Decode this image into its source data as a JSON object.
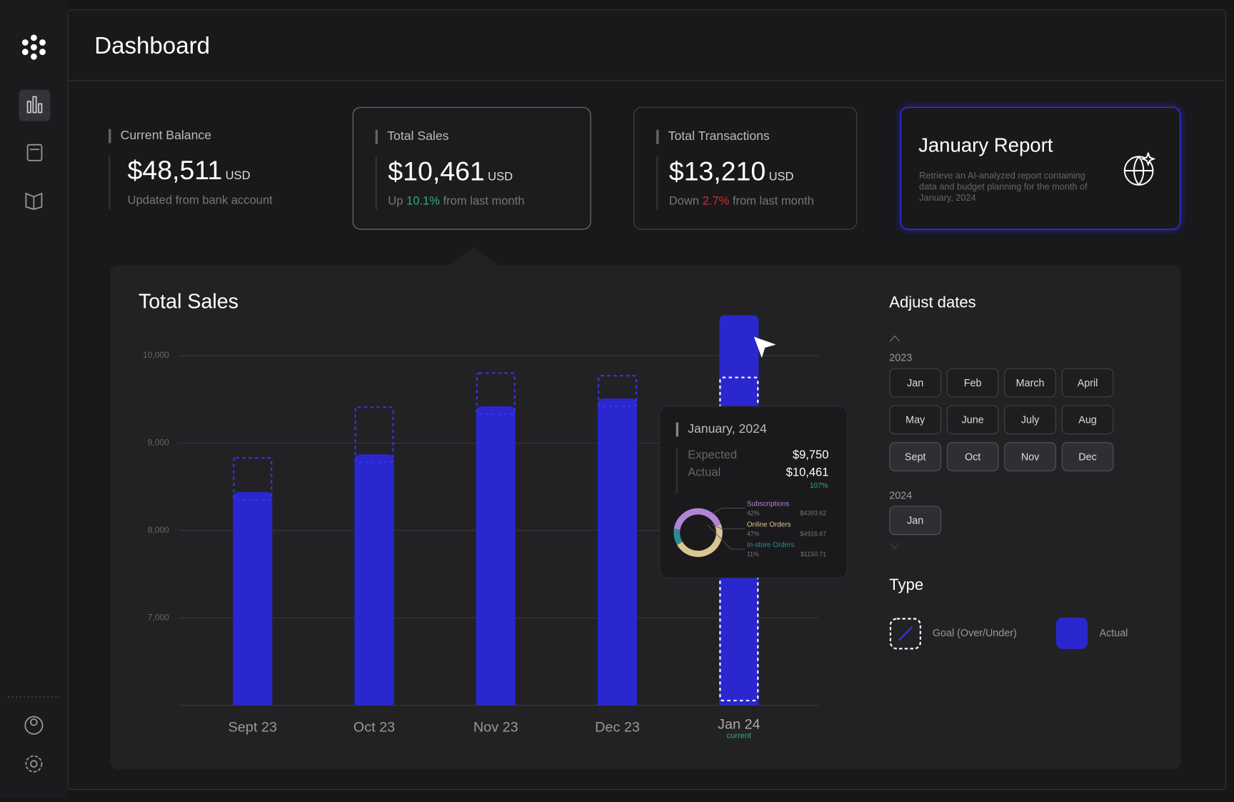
{
  "header": {
    "title": "Dashboard"
  },
  "cards": [
    {
      "label": "Current Balance",
      "amount": "$48,511",
      "unit": "USD",
      "note": "Updated from bank account"
    },
    {
      "label": "Total Sales",
      "amount": "$10,461",
      "unit": "USD",
      "note_pre": "Up",
      "change": "10.1%",
      "note_post": "from last month"
    },
    {
      "label": "Total Transactions",
      "amount": "$13,210",
      "unit": "USD",
      "note_pre": "Down",
      "change": "2.7%",
      "note_post": "from last month"
    }
  ],
  "report": {
    "title": "January Report",
    "description": "Retrieve an AI-analyzed report containing data and budget planning for the month of January, 2024"
  },
  "chart_data": {
    "type": "bar",
    "title": "Total Sales",
    "categories": [
      "Sept 23",
      "Oct 23",
      "Nov 23",
      "Dec 23",
      "Jan 24"
    ],
    "annotation": "current",
    "series": [
      {
        "name": "Goal (Over/Under)",
        "color": "#3b33e6",
        "values": [
          8830,
          9410,
          9800,
          9770,
          9750
        ]
      },
      {
        "name": "Actual",
        "color": "#2a27cf",
        "values": [
          8440,
          8870,
          9420,
          9510,
          10461
        ]
      }
    ],
    "ylim": [
      6000,
      10500
    ],
    "yticks": [
      {
        "value": 7000,
        "label": "7,000"
      },
      {
        "value": 8000,
        "label": "8,000"
      },
      {
        "value": 9000,
        "label": "9,000"
      },
      {
        "value": 10000,
        "label": "10,000"
      }
    ],
    "grid": true
  },
  "tooltip": {
    "title": "January, 2024",
    "expected_label": "Expected",
    "expected": "$9,750",
    "actual_label": "Actual",
    "actual": "$10,461",
    "ratio": "107%",
    "breakdown": {
      "type": "pie",
      "categories": [
        "Subscriptions",
        "Online Orders",
        "In-store Orders"
      ],
      "values": [
        42,
        47,
        11
      ],
      "value_labels": [
        "42%",
        "47%",
        "11%"
      ],
      "amounts": [
        "$4393.62",
        "$4916.67",
        "$1150.71"
      ],
      "colors": [
        "#b383d6",
        "#d9c690",
        "#2e8c8e"
      ]
    }
  },
  "date_picker": {
    "title": "Adjust dates",
    "years": [
      {
        "year": "2023",
        "months": [
          "Jan",
          "Feb",
          "March",
          "April",
          "May",
          "June",
          "July",
          "Aug",
          "Sept",
          "Oct",
          "Nov",
          "Dec"
        ]
      },
      {
        "year": "2024",
        "months": [
          "Jan"
        ]
      }
    ]
  },
  "legend": {
    "title": "Type"
  }
}
